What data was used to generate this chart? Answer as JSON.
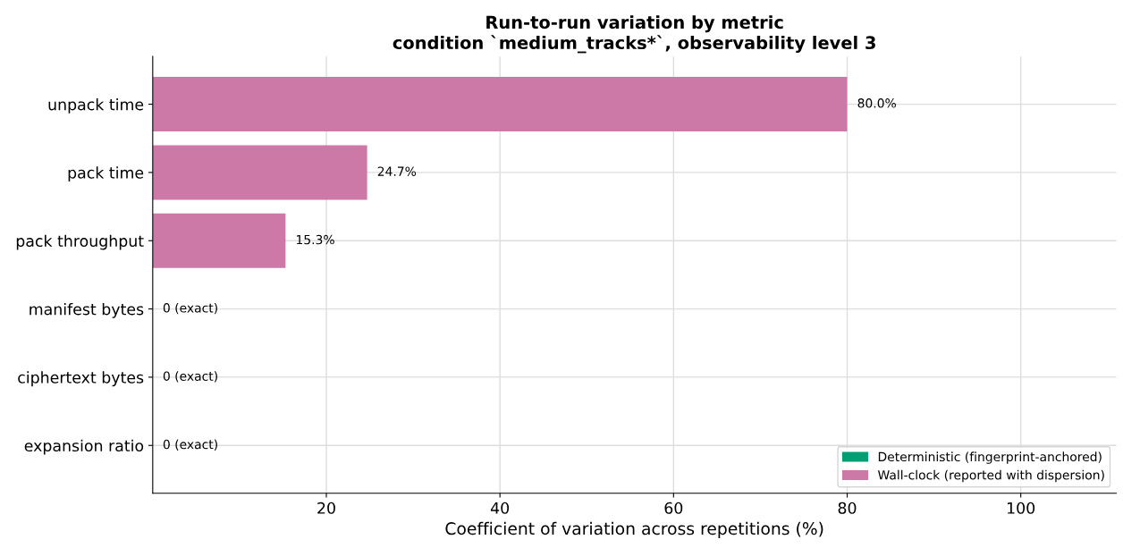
{
  "chart_data": {
    "type": "bar",
    "orientation": "horizontal",
    "title": "Run-to-run variation by metric\ncondition `medium_tracks*`, observability level 3",
    "xlabel": "Coefficient of variation across repetitions (%)",
    "categories": [
      "unpack time",
      "pack time",
      "pack throughput",
      "manifest bytes",
      "ciphertext bytes",
      "expansion ratio"
    ],
    "series": [
      {
        "name": "Deterministic (fingerprint-anchored)",
        "color": "#009e73",
        "values": [
          null,
          null,
          null,
          0,
          0,
          0
        ],
        "value_labels": [
          null,
          null,
          null,
          "0 (exact)",
          "0 (exact)",
          "0 (exact)"
        ]
      },
      {
        "name": "Wall-clock (reported with dispersion)",
        "color": "#cc79a7",
        "values": [
          80.0,
          24.7,
          15.3,
          null,
          null,
          null
        ],
        "value_labels": [
          "80.0%",
          "24.7%",
          "15.3%",
          null,
          null,
          null
        ]
      }
    ],
    "xlim": [
      0,
      111
    ],
    "xticks": [
      20,
      40,
      60,
      80,
      100
    ],
    "grid": true,
    "legend": "bottom right"
  }
}
